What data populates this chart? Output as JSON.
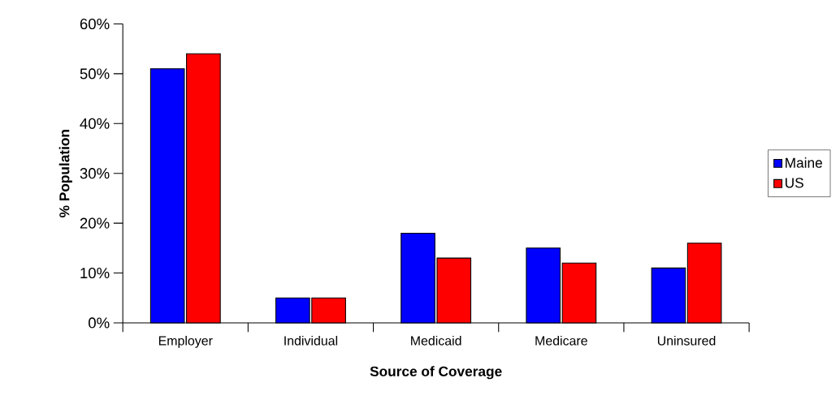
{
  "chart_data": {
    "type": "bar",
    "xlabel": "Source of Coverage",
    "ylabel": "% Population",
    "categories": [
      "Employer",
      "Individual",
      "Medicaid",
      "Medicare",
      "Uninsured"
    ],
    "series": [
      {
        "name": "Maine",
        "color": "#0000ff",
        "values": [
          51,
          5,
          18,
          15,
          11
        ]
      },
      {
        "name": "US",
        "color": "#ff0000",
        "values": [
          54,
          5,
          13,
          12,
          16
        ]
      }
    ],
    "ylim": [
      0,
      60
    ],
    "yticks": [
      {
        "value": 0,
        "label": "0%"
      },
      {
        "value": 10,
        "label": "10%"
      },
      {
        "value": 20,
        "label": "20%"
      },
      {
        "value": 30,
        "label": "30%"
      },
      {
        "value": 40,
        "label": "40%"
      },
      {
        "value": 50,
        "label": "50%"
      },
      {
        "value": 60,
        "label": "60%"
      }
    ],
    "legend": "right"
  }
}
